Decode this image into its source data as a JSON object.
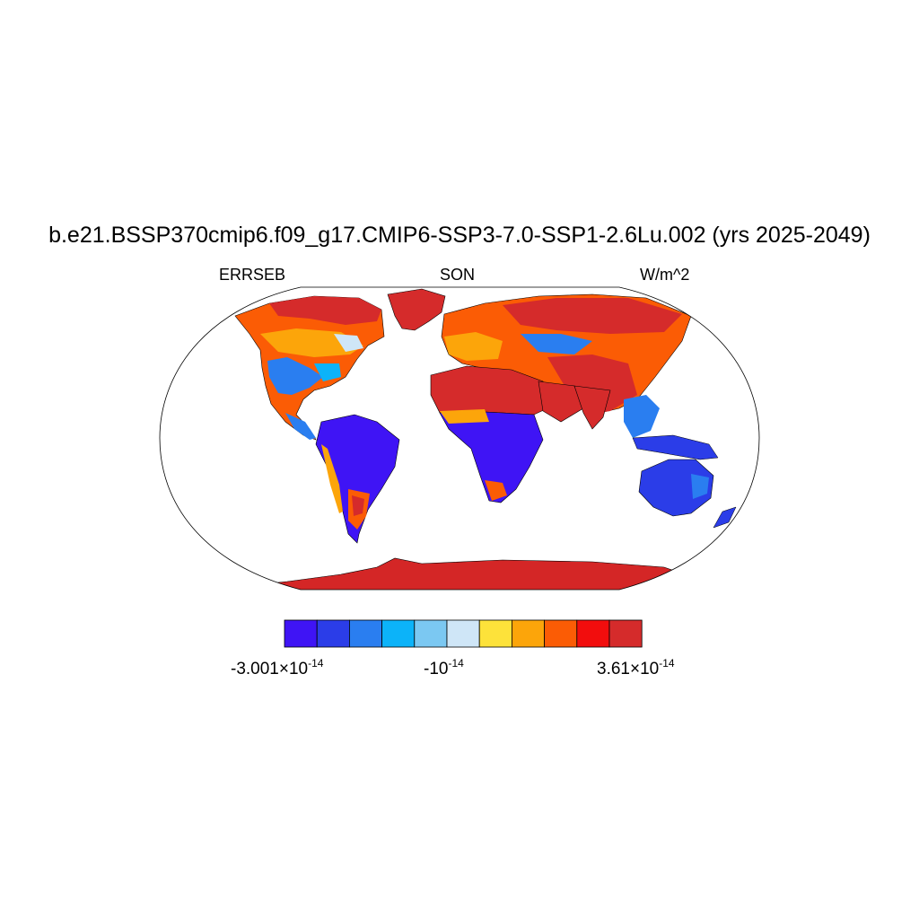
{
  "title": "b.e21.BSSP370cmip6.f09_g17.CMIP6-SSP3-7.0-SSP1-2.6Lu.002 (yrs 2025-2049)",
  "subtitle_left": "ERRSEB",
  "subtitle_center": "SON",
  "subtitle_right": "W/m^2",
  "colorbar": {
    "colors": [
      "#3f14f5",
      "#2b3de8",
      "#2a7ef0",
      "#0cb3f9",
      "#7bc8f2",
      "#cfe6f7",
      "#fde23a",
      "#fca50a",
      "#fb5c05",
      "#f20d0d",
      "#d52b2b"
    ],
    "labels": [
      {
        "mant": "-3.001",
        "times": "×",
        "base": "10",
        "exp": "-14"
      },
      {
        "mant": "",
        "times": "",
        "base": "-10",
        "exp": "-14"
      },
      {
        "mant": "3.61",
        "times": "×",
        "base": "10",
        "exp": "-14"
      }
    ]
  },
  "colors": {
    "land_red": "#d52b2b",
    "antarctica": "#d42626",
    "blue": "#2b3de8",
    "outline": "#000000"
  }
}
